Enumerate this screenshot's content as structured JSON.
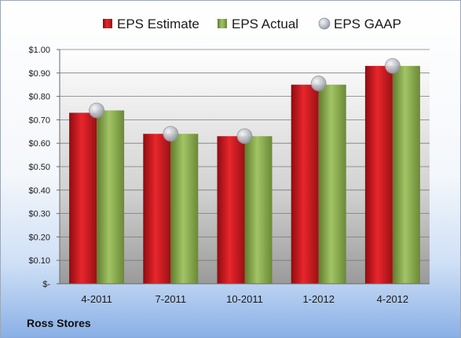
{
  "company": "Ross Stores",
  "colors": {
    "estimate": "#c0161c",
    "actual": "#86a84a",
    "gaap": "#b8bcc4"
  },
  "chart_data": {
    "type": "bar",
    "categories": [
      "4-2011",
      "7-2011",
      "10-2011",
      "1-2012",
      "4-2012"
    ],
    "series": [
      {
        "name": "EPS Estimate",
        "mark": "bar",
        "values": [
          0.73,
          0.64,
          0.63,
          0.85,
          0.93
        ]
      },
      {
        "name": "EPS Actual",
        "mark": "bar",
        "values": [
          0.74,
          0.64,
          0.63,
          0.85,
          0.93
        ]
      },
      {
        "name": "EPS GAAP",
        "mark": "marker",
        "values": [
          0.74,
          0.64,
          0.63,
          0.855,
          0.93
        ]
      }
    ],
    "ylim": [
      0,
      1.0
    ],
    "yticks": [
      0,
      0.1,
      0.2,
      0.3,
      0.4,
      0.5,
      0.6,
      0.7,
      0.8,
      0.9,
      1.0
    ],
    "ytick_labels": [
      "$-",
      "$0.10",
      "$0.20",
      "$0.30",
      "$0.40",
      "$0.50",
      "$0.60",
      "$0.70",
      "$0.80",
      "$0.90",
      "$1.00"
    ],
    "grid": true,
    "legend": "top"
  }
}
